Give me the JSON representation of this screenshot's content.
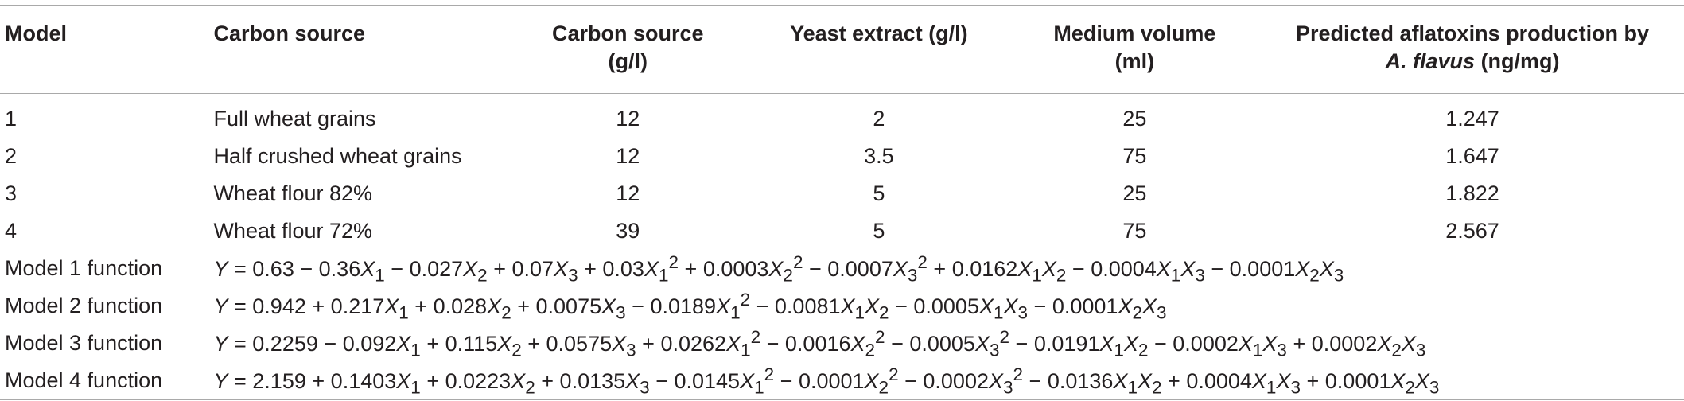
{
  "table": {
    "headers": {
      "model": "Model",
      "carbon_source": "Carbon source",
      "carbon_conc_line1": "Carbon source",
      "carbon_conc_line2": "(g/l)",
      "yeast": "Yeast extract (g/l)",
      "volume_line1": "Medium volume",
      "volume_line2": "(ml)",
      "pred_line1": "Predicted aflatoxins production by",
      "pred_species": "A. flavus",
      "pred_unit": " (ng/mg)"
    },
    "rows": [
      {
        "model": "1",
        "source": "Full wheat grains",
        "conc": "12",
        "yeast": "2",
        "volume": "25",
        "pred": "1.247"
      },
      {
        "model": "2",
        "source": "Half crushed wheat grains",
        "conc": "12",
        "yeast": "3.5",
        "volume": "75",
        "pred": "1.647"
      },
      {
        "model": "3",
        "source": "Wheat flour 82%",
        "conc": "12",
        "yeast": "5",
        "volume": "25",
        "pred": "1.822"
      },
      {
        "model": "4",
        "source": "Wheat flour 72%",
        "conc": "39",
        "yeast": "5",
        "volume": "75",
        "pred": "2.567"
      }
    ],
    "functions": [
      {
        "label": "Model 1 function",
        "intercept": "0.63",
        "terms": [
          {
            "op": "−",
            "coef": "0.36",
            "vars": [
              [
                "X",
                "1",
                ""
              ]
            ]
          },
          {
            "op": "−",
            "coef": "0.027",
            "vars": [
              [
                "X",
                "2",
                ""
              ]
            ]
          },
          {
            "op": "+",
            "coef": "0.07",
            "vars": [
              [
                "X",
                "3",
                ""
              ]
            ]
          },
          {
            "op": "+",
            "coef": "0.03",
            "vars": [
              [
                "X",
                "1",
                "2"
              ]
            ]
          },
          {
            "op": "+",
            "coef": "0.0003",
            "vars": [
              [
                "X",
                "2",
                "2"
              ]
            ]
          },
          {
            "op": "−",
            "coef": "0.0007",
            "vars": [
              [
                "X",
                "3",
                "2"
              ]
            ]
          },
          {
            "op": "+",
            "coef": "0.0162",
            "vars": [
              [
                "X",
                "1",
                ""
              ],
              [
                "X",
                "2",
                ""
              ]
            ]
          },
          {
            "op": "−",
            "coef": "0.0004",
            "vars": [
              [
                "X",
                "1",
                ""
              ],
              [
                "X",
                "3",
                ""
              ]
            ]
          },
          {
            "op": "−",
            "coef": "0.0001",
            "vars": [
              [
                "X",
                "2",
                ""
              ],
              [
                "X",
                "3",
                ""
              ]
            ]
          }
        ]
      },
      {
        "label": "Model 2 function",
        "intercept": "0.942",
        "terms": [
          {
            "op": "+",
            "coef": "0.217",
            "vars": [
              [
                "X",
                "1",
                ""
              ]
            ]
          },
          {
            "op": "+",
            "coef": "0.028",
            "vars": [
              [
                "X",
                "2",
                ""
              ]
            ]
          },
          {
            "op": "+",
            "coef": "0.0075",
            "vars": [
              [
                "X",
                "3",
                ""
              ]
            ]
          },
          {
            "op": "−",
            "coef": "0.0189",
            "vars": [
              [
                "X",
                "1",
                "2"
              ]
            ]
          },
          {
            "op": "−",
            "coef": "0.0081",
            "vars": [
              [
                "X",
                "1",
                ""
              ],
              [
                "X",
                "2",
                ""
              ]
            ]
          },
          {
            "op": "−",
            "coef": "0.0005",
            "vars": [
              [
                "X",
                "1",
                ""
              ],
              [
                "X",
                "3",
                ""
              ]
            ]
          },
          {
            "op": "−",
            "coef": "0.0001",
            "vars": [
              [
                "X",
                "2",
                ""
              ],
              [
                "X",
                "3",
                ""
              ]
            ]
          }
        ]
      },
      {
        "label": "Model 3 function",
        "intercept": "0.2259",
        "terms": [
          {
            "op": "−",
            "coef": "0.092",
            "vars": [
              [
                "X",
                "1",
                ""
              ]
            ]
          },
          {
            "op": "+",
            "coef": "0.115",
            "vars": [
              [
                "X",
                "2",
                ""
              ]
            ]
          },
          {
            "op": "+",
            "coef": "0.0575",
            "vars": [
              [
                "X",
                "3",
                ""
              ]
            ]
          },
          {
            "op": "+",
            "coef": "0.0262",
            "vars": [
              [
                "X",
                "1",
                "2"
              ]
            ]
          },
          {
            "op": "−",
            "coef": "0.0016",
            "vars": [
              [
                "X",
                "2",
                "2"
              ]
            ]
          },
          {
            "op": "−",
            "coef": "0.0005",
            "vars": [
              [
                "X",
                "3",
                "2"
              ]
            ]
          },
          {
            "op": "−",
            "coef": "0.0191",
            "vars": [
              [
                "X",
                "1",
                ""
              ],
              [
                "X",
                "2",
                ""
              ]
            ]
          },
          {
            "op": "−",
            "coef": "0.0002",
            "vars": [
              [
                "X",
                "1",
                ""
              ],
              [
                "X",
                "3",
                ""
              ]
            ]
          },
          {
            "op": "+",
            "coef": "0.0002",
            "vars": [
              [
                "X",
                "2",
                ""
              ],
              [
                "X",
                "3",
                ""
              ]
            ]
          }
        ]
      },
      {
        "label": "Model 4 function",
        "intercept": "2.159",
        "terms": [
          {
            "op": "+",
            "coef": "0.1403",
            "vars": [
              [
                "X",
                "1",
                ""
              ]
            ]
          },
          {
            "op": "+",
            "coef": "0.0223",
            "vars": [
              [
                "X",
                "2",
                ""
              ]
            ]
          },
          {
            "op": "+",
            "coef": "0.0135",
            "vars": [
              [
                "X",
                "3",
                ""
              ]
            ]
          },
          {
            "op": "−",
            "coef": "0.0145",
            "vars": [
              [
                "X",
                "1",
                "2"
              ]
            ]
          },
          {
            "op": "−",
            "coef": "0.0001",
            "vars": [
              [
                "X",
                "2",
                "2"
              ]
            ]
          },
          {
            "op": "−",
            "coef": "0.0002",
            "vars": [
              [
                "X",
                "3",
                "2"
              ]
            ]
          },
          {
            "op": "−",
            "coef": "0.0136",
            "vars": [
              [
                "X",
                "1",
                ""
              ],
              [
                "X",
                "2",
                ""
              ]
            ]
          },
          {
            "op": "+",
            "coef": "0.0004",
            "vars": [
              [
                "X",
                "1",
                ""
              ],
              [
                "X",
                "3",
                ""
              ]
            ]
          },
          {
            "op": "+",
            "coef": "0.0001",
            "vars": [
              [
                "X",
                "2",
                ""
              ],
              [
                "X",
                "3",
                ""
              ]
            ]
          }
        ]
      }
    ],
    "response_symbol": "Y",
    "equals": "="
  }
}
